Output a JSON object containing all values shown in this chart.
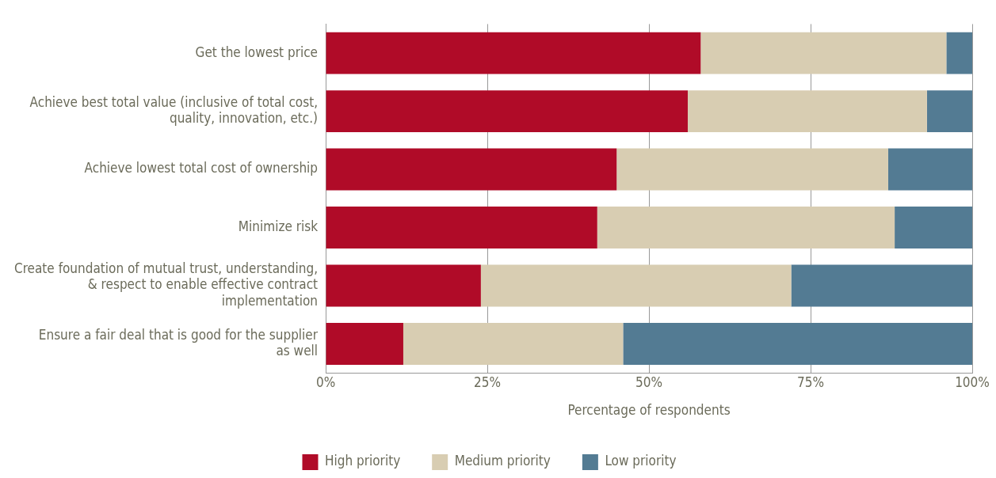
{
  "chart_data": {
    "type": "bar",
    "orientation": "horizontal",
    "stacked": true,
    "categories": [
      "Get the lowest price",
      "Achieve best total value (inclusive of total cost, quality, innovation, etc.)",
      "Achieve lowest total cost of ownership",
      "Minimize risk",
      "Create foundation of mutual trust, understanding, & respect to enable effective contract implementation",
      "Ensure a fair deal that is good for the supplier as well"
    ],
    "series": [
      {
        "name": "High priority",
        "color": "#b00b28",
        "values": [
          58,
          56,
          45,
          42,
          24,
          12
        ]
      },
      {
        "name": "Medium priority",
        "color": "#d8cdb2",
        "values": [
          38,
          37,
          42,
          46,
          48,
          34
        ]
      },
      {
        "name": "Low priority",
        "color": "#537b93",
        "values": [
          4,
          7,
          13,
          12,
          28,
          54
        ]
      }
    ],
    "xlabel": "Percentage of respondents",
    "xlim": [
      0,
      100
    ],
    "xticks": [
      {
        "value": 0,
        "label": "0%"
      },
      {
        "value": 25,
        "label": "25%"
      },
      {
        "value": 50,
        "label": "50%"
      },
      {
        "value": 75,
        "label": "75%"
      },
      {
        "value": 100,
        "label": "100%"
      }
    ],
    "grid": "x",
    "legend": "bottom"
  }
}
